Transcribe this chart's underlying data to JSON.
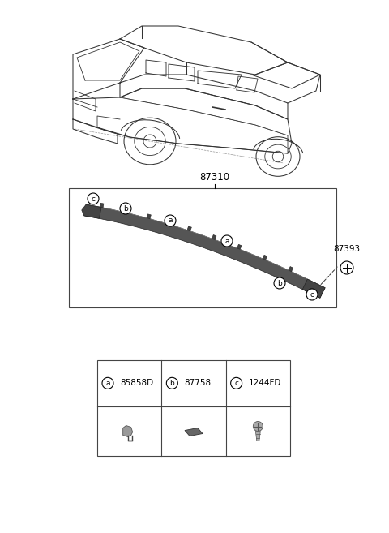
{
  "bg_color": "#ffffff",
  "part_number_main": "87310",
  "part_number_screw": "87393",
  "legend": [
    {
      "label": "a",
      "code": "85858D"
    },
    {
      "label": "b",
      "code": "87758"
    },
    {
      "label": "c",
      "code": "1244FD"
    }
  ],
  "car_color": "#333333",
  "strip_color": "#555555",
  "strip_edge_color": "#222222",
  "box_color": "#555555",
  "fig_width": 4.8,
  "fig_height": 6.57,
  "dpi": 100
}
